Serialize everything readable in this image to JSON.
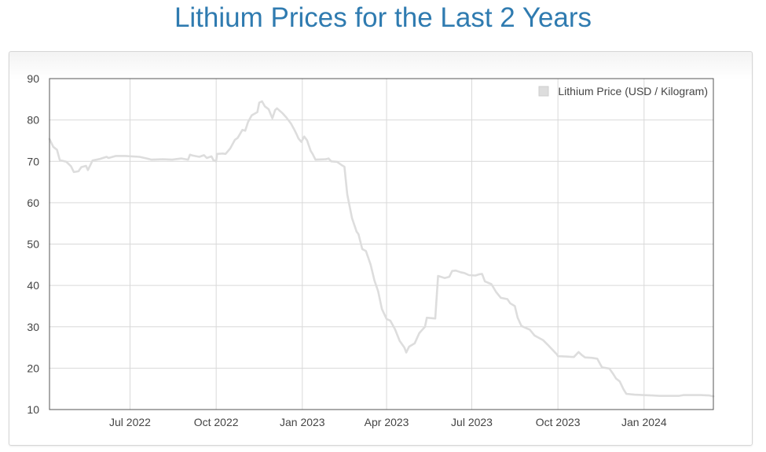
{
  "page": {
    "title": "Lithium Prices for the Last 2 Years"
  },
  "chart_data": {
    "type": "line",
    "title": "Lithium Prices for the Last 2 Years",
    "xlabel": "",
    "ylabel": "",
    "ylim": [
      10,
      90
    ],
    "yticks": [
      10,
      20,
      30,
      40,
      50,
      60,
      70,
      80,
      90
    ],
    "xlim": [
      "2022-04-06",
      "2024-03-15"
    ],
    "xticks": [
      {
        "date": "2022-07-01",
        "label": "Jul 2022"
      },
      {
        "date": "2022-10-01",
        "label": "Oct 2022"
      },
      {
        "date": "2023-01-01",
        "label": "Jan 2023"
      },
      {
        "date": "2023-04-01",
        "label": "Apr 2023"
      },
      {
        "date": "2023-07-01",
        "label": "Jul 2023"
      },
      {
        "date": "2023-10-01",
        "label": "Oct 2023"
      },
      {
        "date": "2024-01-01",
        "label": "Jan 2024"
      }
    ],
    "grid": true,
    "legend": "top-right",
    "series_color": "#dddddd",
    "series": [
      {
        "name": "Lithium Price (USD / Kilogram)",
        "points": [
          [
            "2022-04-06",
            75.4
          ],
          [
            "2022-04-10",
            73.5
          ],
          [
            "2022-04-14",
            72.8
          ],
          [
            "2022-04-17",
            70.3
          ],
          [
            "2022-04-24",
            69.9
          ],
          [
            "2022-04-29",
            68.8
          ],
          [
            "2022-05-02",
            67.4
          ],
          [
            "2022-05-07",
            67.6
          ],
          [
            "2022-05-10",
            68.6
          ],
          [
            "2022-05-15",
            68.9
          ],
          [
            "2022-05-17",
            67.9
          ],
          [
            "2022-05-22",
            70.2
          ],
          [
            "2022-05-30",
            70.6
          ],
          [
            "2022-06-06",
            71.1
          ],
          [
            "2022-06-08",
            70.8
          ],
          [
            "2022-06-16",
            71.3
          ],
          [
            "2022-06-26",
            71.3
          ],
          [
            "2022-07-11",
            71.1
          ],
          [
            "2022-07-19",
            70.7
          ],
          [
            "2022-07-24",
            70.4
          ],
          [
            "2022-08-05",
            70.5
          ],
          [
            "2022-08-15",
            70.4
          ],
          [
            "2022-08-25",
            70.7
          ],
          [
            "2022-09-01",
            70.4
          ],
          [
            "2022-09-03",
            71.6
          ],
          [
            "2022-09-06",
            71.4
          ],
          [
            "2022-09-13",
            71.1
          ],
          [
            "2022-09-18",
            71.5
          ],
          [
            "2022-09-21",
            70.8
          ],
          [
            "2022-09-26",
            71.2
          ],
          [
            "2022-09-28",
            70.3
          ],
          [
            "2022-10-01",
            70.0
          ],
          [
            "2022-10-02",
            71.8
          ],
          [
            "2022-10-08",
            71.9
          ],
          [
            "2022-10-11",
            71.8
          ],
          [
            "2022-10-16",
            73.1
          ],
          [
            "2022-10-21",
            75.2
          ],
          [
            "2022-10-24",
            75.7
          ],
          [
            "2022-10-29",
            77.6
          ],
          [
            "2022-11-01",
            77.4
          ],
          [
            "2022-11-04",
            79.5
          ],
          [
            "2022-11-08",
            81.1
          ],
          [
            "2022-11-14",
            81.9
          ],
          [
            "2022-11-16",
            84.2
          ],
          [
            "2022-11-19",
            84.5
          ],
          [
            "2022-11-22",
            83.3
          ],
          [
            "2022-11-26",
            82.6
          ],
          [
            "2022-11-30",
            80.4
          ],
          [
            "2022-12-03",
            82.4
          ],
          [
            "2022-12-05",
            82.8
          ],
          [
            "2022-12-11",
            81.6
          ],
          [
            "2022-12-15",
            80.6
          ],
          [
            "2022-12-20",
            79.1
          ],
          [
            "2022-12-24",
            77.4
          ],
          [
            "2022-12-26",
            76.5
          ],
          [
            "2022-12-28",
            75.5
          ],
          [
            "2022-12-31",
            74.7
          ],
          [
            "2023-01-03",
            76.0
          ],
          [
            "2023-01-06",
            75.1
          ],
          [
            "2023-01-10",
            72.5
          ],
          [
            "2023-01-12",
            71.8
          ],
          [
            "2023-01-15",
            70.4
          ],
          [
            "2023-01-26",
            70.5
          ],
          [
            "2023-01-29",
            70.7
          ],
          [
            "2023-02-01",
            70.0
          ],
          [
            "2023-02-07",
            69.9
          ],
          [
            "2023-02-12",
            69.1
          ],
          [
            "2023-02-15",
            68.7
          ],
          [
            "2023-02-18",
            62.0
          ],
          [
            "2023-02-23",
            56.3
          ],
          [
            "2023-02-28",
            53.0
          ],
          [
            "2023-03-02",
            52.4
          ],
          [
            "2023-03-06",
            48.8
          ],
          [
            "2023-03-10",
            48.3
          ],
          [
            "2023-03-15",
            45.0
          ],
          [
            "2023-03-19",
            41.2
          ],
          [
            "2023-03-23",
            38.6
          ],
          [
            "2023-03-27",
            34.3
          ],
          [
            "2023-04-01",
            31.9
          ],
          [
            "2023-04-05",
            31.5
          ],
          [
            "2023-04-10",
            29.4
          ],
          [
            "2023-04-15",
            26.6
          ],
          [
            "2023-04-20",
            25.0
          ],
          [
            "2023-04-22",
            23.8
          ],
          [
            "2023-04-25",
            25.2
          ],
          [
            "2023-05-01",
            26.0
          ],
          [
            "2023-05-06",
            28.5
          ],
          [
            "2023-05-12",
            30.0
          ],
          [
            "2023-05-14",
            32.2
          ],
          [
            "2023-05-23",
            32.0
          ],
          [
            "2023-05-26",
            42.3
          ],
          [
            "2023-06-02",
            41.8
          ],
          [
            "2023-06-07",
            42.1
          ],
          [
            "2023-06-10",
            43.5
          ],
          [
            "2023-06-14",
            43.6
          ],
          [
            "2023-06-19",
            43.2
          ],
          [
            "2023-06-23",
            43.0
          ],
          [
            "2023-06-28",
            42.5
          ],
          [
            "2023-07-05",
            42.4
          ],
          [
            "2023-07-09",
            42.7
          ],
          [
            "2023-07-12",
            42.8
          ],
          [
            "2023-07-15",
            41.0
          ],
          [
            "2023-07-22",
            40.3
          ],
          [
            "2023-07-27",
            38.4
          ],
          [
            "2023-08-01",
            37.0
          ],
          [
            "2023-08-08",
            36.7
          ],
          [
            "2023-08-11",
            35.7
          ],
          [
            "2023-08-16",
            35.0
          ],
          [
            "2023-08-19",
            32.2
          ],
          [
            "2023-08-23",
            30.2
          ],
          [
            "2023-08-27",
            29.8
          ],
          [
            "2023-09-01",
            29.3
          ],
          [
            "2023-09-06",
            27.9
          ],
          [
            "2023-09-10",
            27.4
          ],
          [
            "2023-09-15",
            26.8
          ],
          [
            "2023-09-20",
            25.7
          ],
          [
            "2023-09-25",
            24.5
          ],
          [
            "2023-09-30",
            23.3
          ],
          [
            "2023-10-01",
            22.9
          ],
          [
            "2023-10-10",
            22.8
          ],
          [
            "2023-10-18",
            22.7
          ],
          [
            "2023-10-23",
            23.9
          ],
          [
            "2023-10-27",
            23.1
          ],
          [
            "2023-10-30",
            22.6
          ],
          [
            "2023-11-06",
            22.5
          ],
          [
            "2023-11-12",
            22.3
          ],
          [
            "2023-11-17",
            20.2
          ],
          [
            "2023-11-25",
            19.9
          ],
          [
            "2023-11-29",
            18.6
          ],
          [
            "2023-12-02",
            17.5
          ],
          [
            "2023-12-06",
            16.8
          ],
          [
            "2023-12-10",
            14.9
          ],
          [
            "2023-12-13",
            13.8
          ],
          [
            "2023-12-22",
            13.6
          ],
          [
            "2023-12-31",
            13.5
          ],
          [
            "2024-01-10",
            13.4
          ],
          [
            "2024-01-17",
            13.3
          ],
          [
            "2024-01-29",
            13.3
          ],
          [
            "2024-02-07",
            13.3
          ],
          [
            "2024-02-12",
            13.5
          ],
          [
            "2024-02-20",
            13.5
          ],
          [
            "2024-03-01",
            13.5
          ],
          [
            "2024-03-11",
            13.4
          ],
          [
            "2024-03-15",
            13.2
          ]
        ]
      }
    ]
  }
}
